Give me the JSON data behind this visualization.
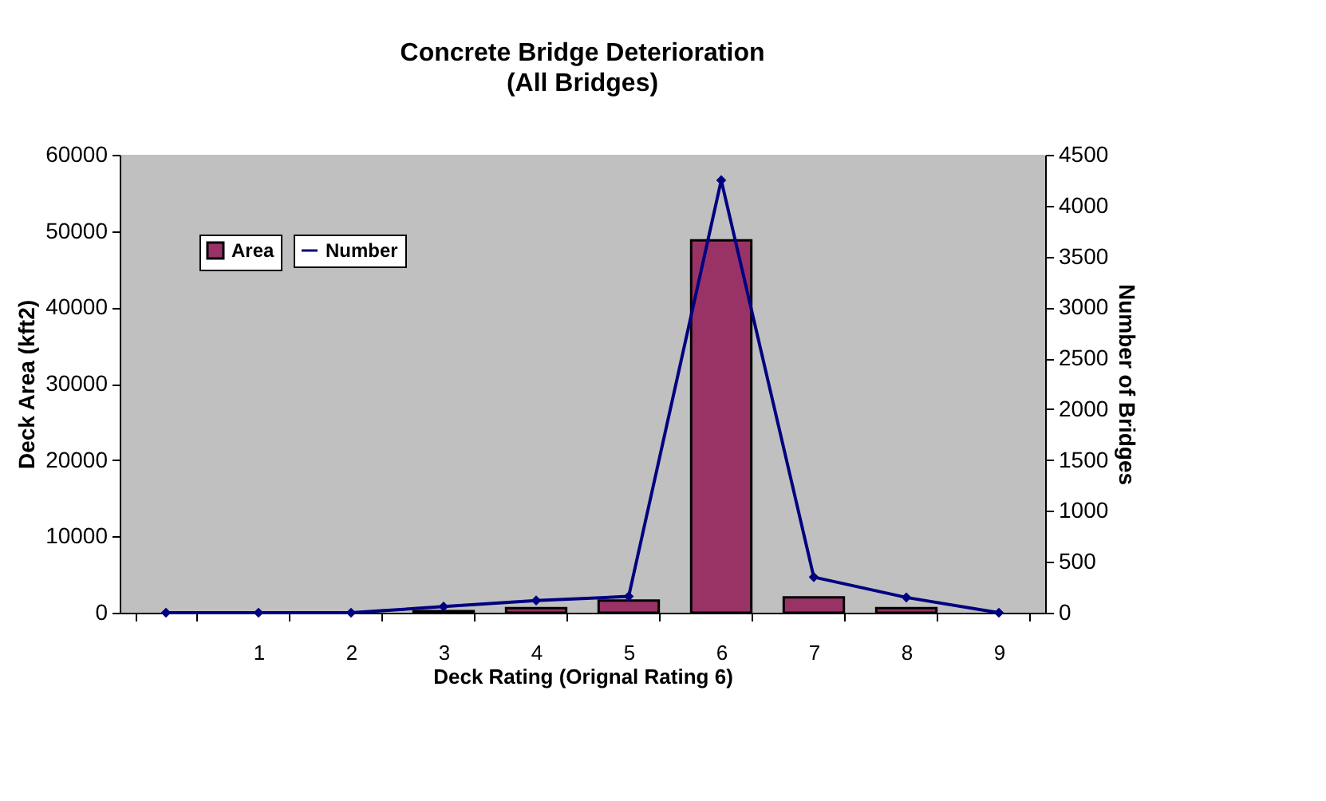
{
  "chart_data": {
    "type": "bar",
    "title": "Concrete Bridge Deterioration",
    "subtitle": "(All Bridges)",
    "xlabel": "Deck Rating (Orignal Rating 6)",
    "ylabel": "Deck Area (kft2)",
    "y2label": "Number of Bridges",
    "categories": [
      null,
      "1",
      "2",
      "3",
      "4",
      "5",
      "6",
      "7",
      "8",
      "9"
    ],
    "series": [
      {
        "name": "Area",
        "color": "#993366",
        "values": [
          0,
          0,
          0,
          200,
          600,
          1600,
          48800,
          2000,
          600,
          0
        ]
      },
      {
        "name": "Number",
        "type": "line",
        "axis": "y2",
        "color": "#000080",
        "marker": "diamond",
        "values": [
          0,
          0,
          0,
          60,
          120,
          160,
          4250,
          350,
          150,
          0
        ]
      }
    ],
    "ylim": [
      0,
      60000
    ],
    "yticks": [
      0,
      10000,
      20000,
      30000,
      40000,
      50000,
      60000
    ],
    "y2lim": [
      0,
      4500
    ],
    "y2ticks": [
      0,
      500,
      1000,
      1500,
      2000,
      2500,
      3000,
      3500,
      4000,
      4500
    ],
    "grid": false,
    "legend": "top left"
  }
}
